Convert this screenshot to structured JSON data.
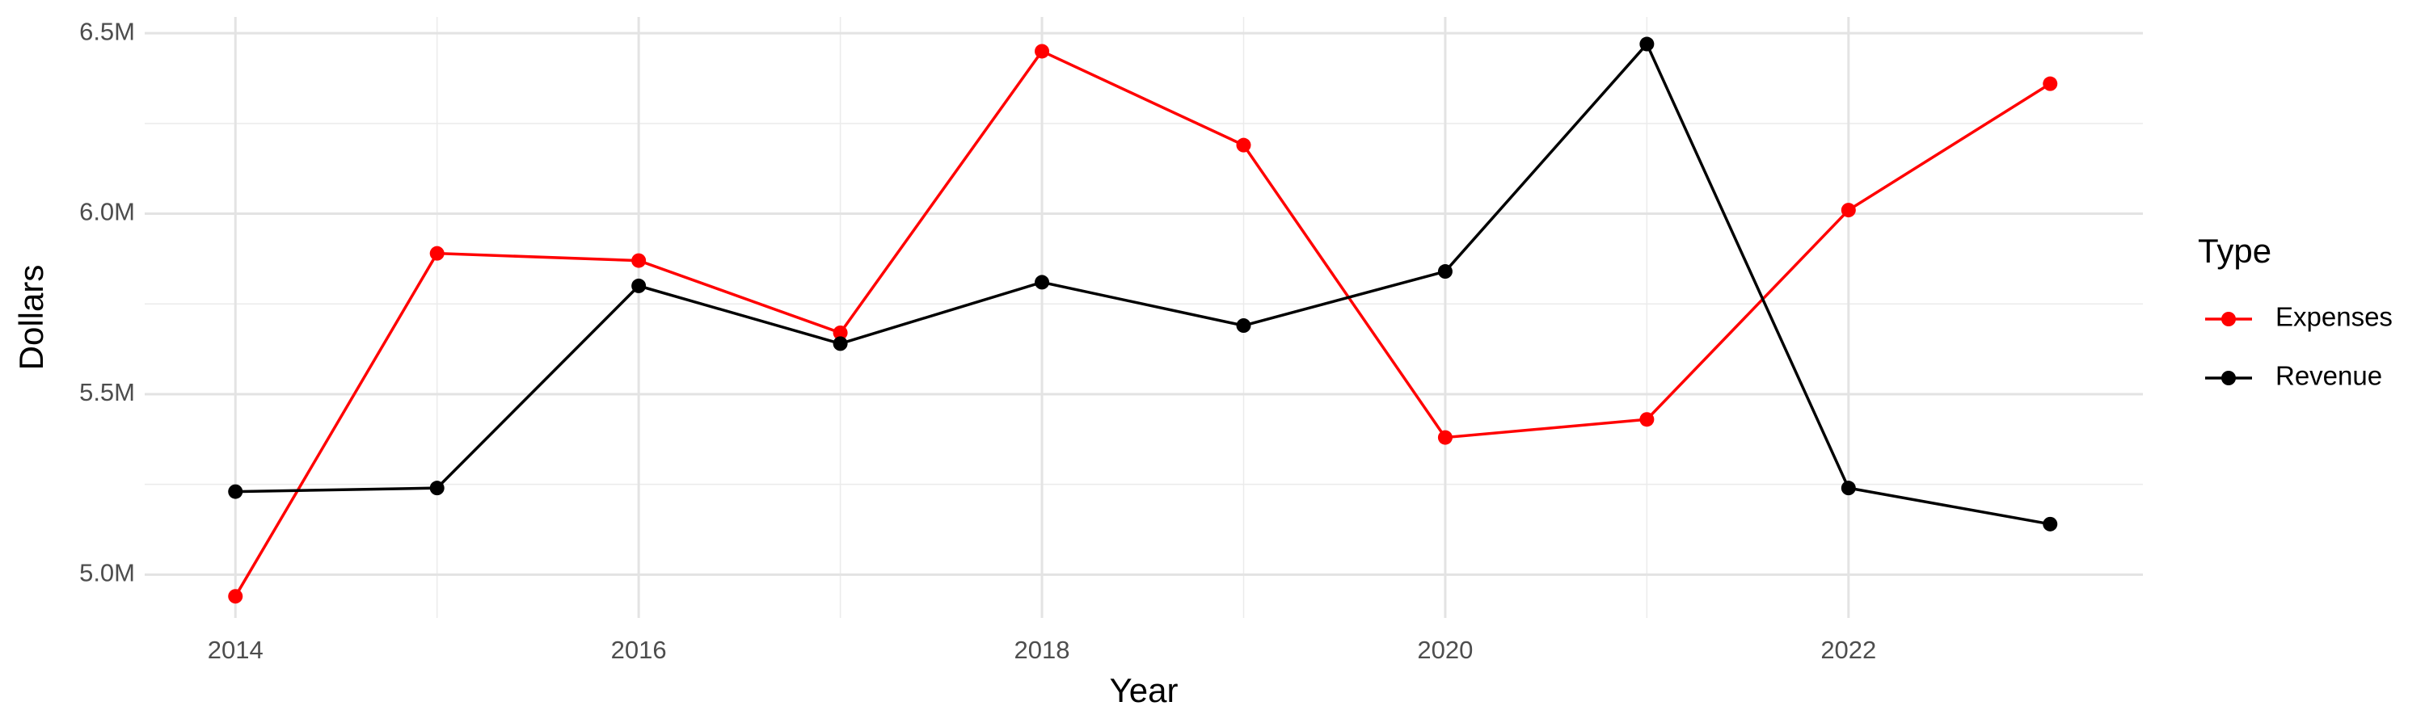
{
  "chart_data": {
    "type": "line",
    "x_label": "Year",
    "y_label": "Dollars",
    "legend_title": "Type",
    "x": [
      2014,
      2015,
      2016,
      2017,
      2018,
      2019,
      2020,
      2021,
      2022,
      2023
    ],
    "series": [
      {
        "name": "Expenses",
        "color": "#ff0000",
        "values": [
          4940000,
          5890000,
          5870000,
          5670000,
          6450000,
          6190000,
          5380000,
          5430000,
          6010000,
          6360000
        ]
      },
      {
        "name": "Revenue",
        "color": "#000000",
        "values": [
          5230000,
          5240000,
          5800000,
          5640000,
          5810000,
          5690000,
          5840000,
          6470000,
          5240000,
          5140000
        ]
      }
    ],
    "xlim": [
      2013.55,
      2023.46
    ],
    "xticks": [
      2014,
      2016,
      2018,
      2020,
      2022
    ],
    "ylim": [
      4880000,
      6545000
    ],
    "yticks": [
      {
        "value": 5000000,
        "label": "5.0M"
      },
      {
        "value": 5500000,
        "label": "5.5M"
      },
      {
        "value": 6000000,
        "label": "6.0M"
      },
      {
        "value": 6500000,
        "label": "6.5M"
      }
    ],
    "grid": true,
    "legend_position": "right"
  }
}
